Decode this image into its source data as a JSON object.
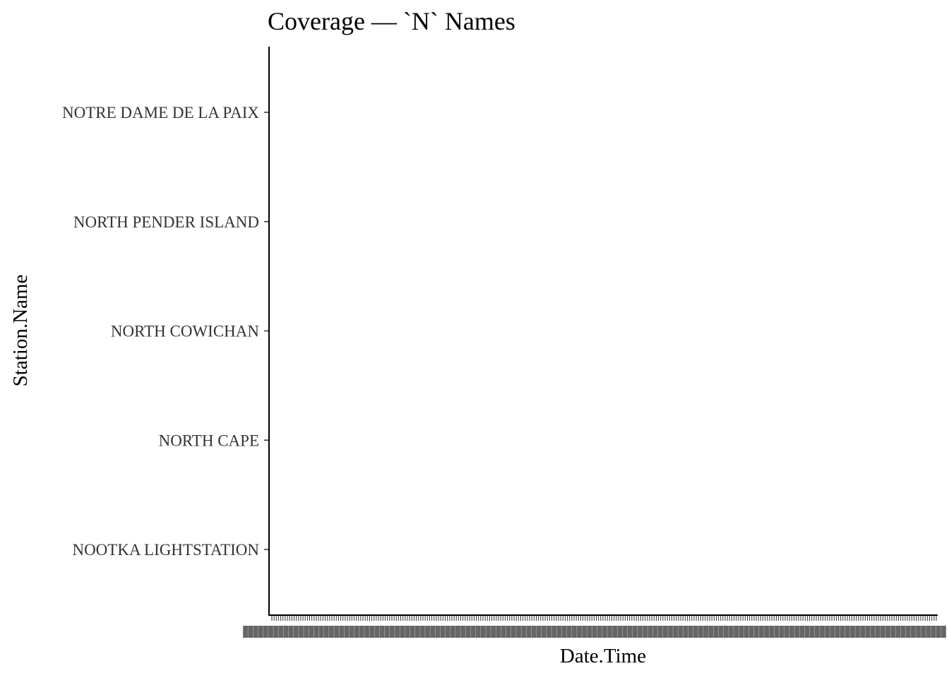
{
  "chart_data": {
    "type": "scatter",
    "title": "Coverage — `N` Names",
    "xlabel": "Date.Time",
    "ylabel": "Station.Name",
    "categories": [
      "NOOTKA LIGHTSTATION",
      "NORTH CAPE",
      "NORTH COWICHAN",
      "NORTH PENDER ISLAND",
      "NOTRE DAME DE LA PAIX"
    ],
    "series": [],
    "grid": false,
    "legend": "none"
  }
}
